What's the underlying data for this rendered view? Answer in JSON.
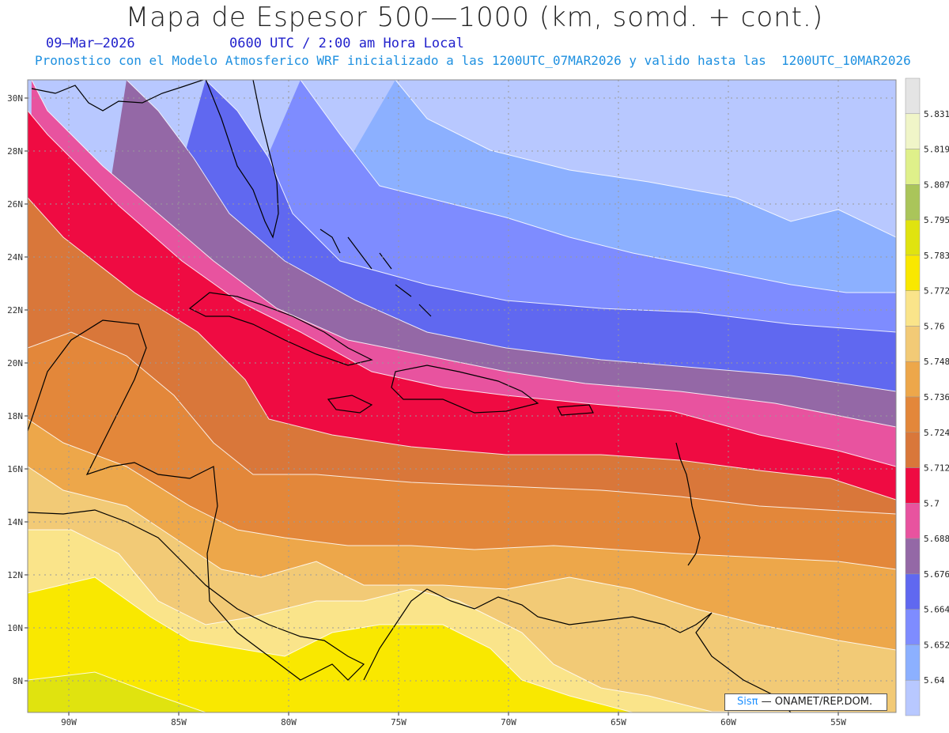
{
  "header": {
    "title": "Mapa de Espesor 500—1000 (km, somd. + cont.)",
    "date": "09—Mar—2026",
    "valid_time": "0600 UTC / 2:00 am Hora Local",
    "forecast_info": "Pronostico con el Modelo Atmosferico WRF inicializado a las 1200UTC_07MAR2026 y valido hasta las  1200UTC_10MAR2026"
  },
  "map": {
    "lat_labels": [
      "30N",
      "28N",
      "26N",
      "24N",
      "22N",
      "20N",
      "18N",
      "16N",
      "14N",
      "12N",
      "10N",
      "8N"
    ],
    "lon_labels": [
      "90W",
      "85W",
      "80W",
      "75W",
      "70W",
      "65W",
      "60W",
      "55W"
    ],
    "colors": {
      "5.64": "#b8c8ff",
      "5.652": "#8cb0ff",
      "5.664": "#7e8cff",
      "5.676": "#6068f0",
      "5.688": "#9468a6",
      "5.7": "#e8539f",
      "5.712": "#ef0b42",
      "5.724": "#d9773a",
      "5.736": "#e3873a",
      "5.748": "#eda74a",
      "5.76": "#f2ca76",
      "5.772": "#fae48a",
      "5.783": "#f9e800",
      "5.795": "#e0e30f",
      "5.807": "#aac55a",
      "5.819": "#dff08a",
      "5.831": "#f0f5c8",
      "top": "#e4e4e4",
      "coastline": "#000000"
    }
  },
  "colorbar": {
    "levels": [
      "5.64",
      "5.652",
      "5.664",
      "5.676",
      "5.688",
      "5.7",
      "5.712",
      "5.724",
      "5.736",
      "5.748",
      "5.76",
      "5.772",
      "5.783",
      "5.795",
      "5.807",
      "5.819",
      "5.831"
    ]
  },
  "credit": {
    "logo": "Sisπ",
    "text": " — ONAMET/REP.DOM."
  }
}
